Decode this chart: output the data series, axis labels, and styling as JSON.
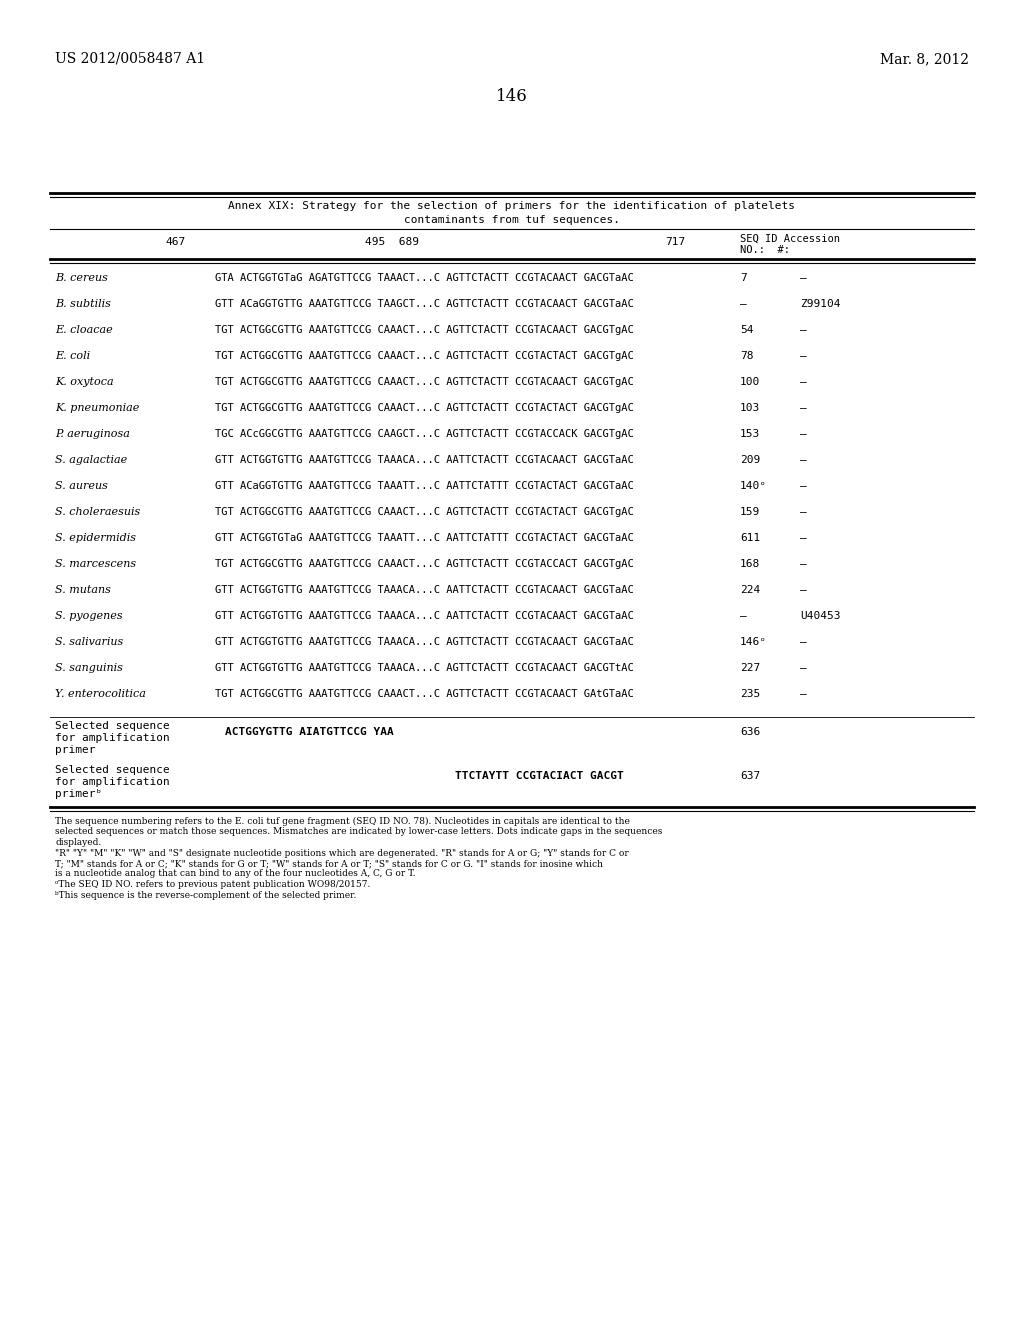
{
  "page_number": "146",
  "patent_left": "US 2012/0058487 A1",
  "patent_right": "Mar. 8, 2012",
  "table_title_line1": "Annex XIX: Strategy for the selection of primers for the identification of platelets",
  "table_title_line2": "contaminants from tuf sequences.",
  "rows": [
    {
      "species": "B. cereus",
      "sequence": "GTA ACTGGTGTaG AGATGTTCCG TAAACT...C AGTTCTACTT CCGTACAACT GACGTaAC",
      "seqid": "7",
      "acc": "–"
    },
    {
      "species": "B. subtilis",
      "sequence": "GTT ACaGGTGTTG AAATGTTCCG TAAGCT...C AGTTCTACTT CCGTACAACT GACGTaAC",
      "seqid": "–",
      "acc": "Z99104"
    },
    {
      "species": "E. cloacae",
      "sequence": "TGT ACTGGCGTTG AAATGTTCCG CAAACT...C AGTTCTACTT CCGTACAACT GACGTgAC",
      "seqid": "54",
      "acc": "–"
    },
    {
      "species": "E. coli",
      "sequence": "TGT ACTGGCGTTG AAATGTTCCG CAAACT...C AGTTCTACTT CCGTACTACT GACGTgAC",
      "seqid": "78",
      "acc": "–"
    },
    {
      "species": "K. oxytoca",
      "sequence": "TGT ACTGGCGTTG AAATGTTCCG CAAACT...C AGTTCTACTT CCGTACAACT GACGTgAC",
      "seqid": "100",
      "acc": "–"
    },
    {
      "species": "K. pneumoniae",
      "sequence": "TGT ACTGGCGTTG AAATGTTCCG CAAACT...C AGTTCTACTT CCGTACTACT GACGTgAC",
      "seqid": "103",
      "acc": "–"
    },
    {
      "species": "P. aeruginosa",
      "sequence": "TGC ACcGGCGTTG AAATGTTCCG CAAGCT...C AGTTCTACTT CCGTACCACK GACGTgAC",
      "seqid": "153",
      "acc": "–"
    },
    {
      "species": "S. agalactiae",
      "sequence": "GTT ACTGGTGTTG AAATGTTCCG TAAACA...C AATTCTACTT CCGTACAACT GACGTaAC",
      "seqid": "209",
      "acc": "–"
    },
    {
      "species": "S. aureus",
      "sequence": "GTT ACaGGTGTTG AAATGTTCCG TAAATT...C AATTCTATTT CCGTACTACT GACGTaAC",
      "seqid": "140ᵒ",
      "acc": "–"
    },
    {
      "species": "S. choleraesuis",
      "sequence": "TGT ACTGGCGTTG AAATGTTCCG CAAACT...C AGTTCTACTT CCGTACTACT GACGTgAC",
      "seqid": "159",
      "acc": "–"
    },
    {
      "species": "S. epidermidis",
      "sequence": "GTT ACTGGTGTaG AAATGTTCCG TAAATT...C AATTCTATTT CCGTACTACT GACGTaAC",
      "seqid": "611",
      "acc": "–"
    },
    {
      "species": "S. marcescens",
      "sequence": "TGT ACTGGCGTTG AAATGTTCCG CAAACT...C AGTTCTACTT CCGTACCACT GACGTgAC",
      "seqid": "168",
      "acc": "–"
    },
    {
      "species": "S. mutans",
      "sequence": "GTT ACTGGTGTTG AAATGTTCCG TAAACA...C AATTCTACTT CCGTACAACT GACGTaAC",
      "seqid": "224",
      "acc": "–"
    },
    {
      "species": "S. pyogenes",
      "sequence": "GTT ACTGGTGTTG AAATGTTCCG TAAACA...C AATTCTACTT CCGTACAACT GACGTaAC",
      "seqid": "–",
      "acc": "U40453"
    },
    {
      "species": "S. salivarius",
      "sequence": "GTT ACTGGTGTTG AAATGTTCCG TAAACA...C AGTTCTACTT CCGTACAACT GACGTaAC",
      "seqid": "146ᵒ",
      "acc": "–"
    },
    {
      "species": "S. sanguinis",
      "sequence": "GTT ACTGGTGTTG AAATGTTCCG TAAACA...C AGTTCTACTT CCGTACAACT GACGTtAC",
      "seqid": "227",
      "acc": "–"
    },
    {
      "species": "Y. enterocolitica",
      "sequence": "TGT ACTGGCGTTG AAATGTTCCG CAAACT...C AGTTCTACTT CCGTACAACT GAtGTaAC",
      "seqid": "235",
      "acc": "–"
    }
  ],
  "selected1_label1": "Selected sequence",
  "selected1_label2": "for amplification",
  "selected1_label3": "primer",
  "selected1_seq": "ACTGGYGTTG AIATGTTCCG YAA",
  "selected1_seqid": "636",
  "selected2_label1": "Selected sequence",
  "selected2_label2": "for amplification",
  "selected2_label3": "primerᵇ",
  "selected2_seq": "TTCTAYTT CCGTACIACT GACGT",
  "selected2_seqid": "637",
  "fn1": "The sequence numbering refers to the E. coli tuf gene fragment (SEQ ID NO. 78). Nucleotides in capitals are identical to the",
  "fn2": "selected sequences or match those sequences. Mismatches are indicated by lower-case letters. Dots indicate gaps in the sequences",
  "fn3": "displayed.",
  "fn4": "\"R\" \"Y\" \"M\" \"K\" \"W\" and \"S\" designate nucleotide positions which are degenerated. \"R\" stands for A or G; \"Y\" stands for C or",
  "fn5": "T; \"M\" stands for A or C; \"K\" stands for G or T; \"W\" stands for A or T; \"S\" stands for C or G. \"I\" stands for inosine which",
  "fn6": "is a nucleotide analog that can bind to any of the four nucleotides A, C, G or T.",
  "fn7a": "ᵒThe SEQ ID NO. refers to previous patent publication WO98/20157.",
  "fn8b": "ᵇThis sequence is the reverse-complement of the selected primer."
}
